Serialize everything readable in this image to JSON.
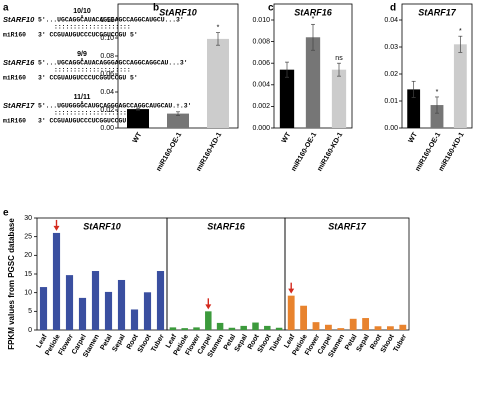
{
  "panel_labels": [
    "a",
    "b",
    "c",
    "d",
    "e"
  ],
  "alignment": [
    {
      "ratio": "10/10",
      "gene": "StARF10",
      "target": "5′...UGCAGGCAUACAGGGAGCCAGGCAUGCU...3′",
      "pairing": "::::::::::::::::::::",
      "mirna": "miR160",
      "mirna_seq": "3′  CCGUAUGUCCCUCGGUCCGU  5′"
    },
    {
      "ratio": "9/9",
      "gene": "StARF16",
      "target": "5′...UGCAGGCAUACAGGGAGCCAGGCAGGCAU...3′",
      "pairing": "::::::::::::::::::::",
      "mirna": "miR160",
      "mirna_seq": "3′  CCGUAUGUCCCUCGGUCCGU  5′"
    },
    {
      "ratio": "11/11",
      "gene": "StARF17",
      "target": "5′...UGUGGGGCAUGCAGGGAGCCAGGCAUGCAU...3′",
      "pairing": "::::::::::::::::::::",
      "mirna": "miR160",
      "mirna_seq": "3′  CCGUAUGUCCCUCGGUCCGU  5′"
    }
  ],
  "chart_data": [
    {
      "type": "bar",
      "title": "StARF10",
      "categories": [
        "WT",
        "miR160-OE-1",
        "miR160-KD-1"
      ],
      "values": [
        0.021,
        0.016,
        0.099
      ],
      "errors": [
        0.001,
        0.002,
        0.007
      ],
      "annotations": [
        null,
        "*",
        "*"
      ],
      "colors": [
        "#000000",
        "#767676",
        "#cccccc"
      ],
      "ylim": [
        0,
        0.12
      ],
      "yticks": [
        {
          "value": 0,
          "label": "0.00"
        },
        {
          "value": 0.02,
          "label": "0.02"
        },
        {
          "value": 0.04,
          "label": "0.04"
        },
        {
          "value": 0.06,
          "label": "0.06"
        },
        {
          "value": 0.08,
          "label": "0.08"
        },
        {
          "value": 0.1,
          "label": "0.10"
        },
        {
          "value": 0.12,
          "label": "0.12"
        }
      ]
    },
    {
      "type": "bar",
      "title": "StARF16",
      "categories": [
        "WT",
        "miR160-OE-1",
        "miR160-KD-1"
      ],
      "values": [
        0.0054,
        0.0084,
        0.0054
      ],
      "errors": [
        0.0007,
        0.0012,
        0.0006
      ],
      "annotations": [
        null,
        "*",
        "ns"
      ],
      "colors": [
        "#000000",
        "#767676",
        "#cccccc"
      ],
      "ylim": [
        0,
        0.01
      ],
      "yticks": [
        {
          "value": 0,
          "label": "0.000"
        },
        {
          "value": 0.002,
          "label": "0.002"
        },
        {
          "value": 0.004,
          "label": "0.004"
        },
        {
          "value": 0.006,
          "label": "0.006"
        },
        {
          "value": 0.008,
          "label": "0.008"
        },
        {
          "value": 0.01,
          "label": "0.010"
        }
      ]
    },
    {
      "type": "bar",
      "title": "StARF17",
      "categories": [
        "WT",
        "miR160-OE-1",
        "miR160-KD-1"
      ],
      "values": [
        0.0143,
        0.0085,
        0.031
      ],
      "errors": [
        0.003,
        0.003,
        0.003
      ],
      "annotations": [
        null,
        "*",
        "*"
      ],
      "colors": [
        "#000000",
        "#767676",
        "#cccccc"
      ],
      "ylim": [
        0,
        0.04
      ],
      "yticks": [
        {
          "value": 0,
          "label": "0.00"
        },
        {
          "value": 0.01,
          "label": "0.01"
        },
        {
          "value": 0.02,
          "label": "0.02"
        },
        {
          "value": 0.03,
          "label": "0.03"
        },
        {
          "value": 0.04,
          "label": "0.04"
        }
      ]
    },
    {
      "type": "bar",
      "y_label": "FPKM values from PGSC database",
      "categories": [
        "Leaf",
        "Petiole",
        "Flower",
        "Carpel",
        "Stamen",
        "Petal",
        "Sepal",
        "Root",
        "Shoot",
        "Tuber"
      ],
      "ylim": [
        0,
        30
      ],
      "yticks": [
        0,
        5,
        10,
        15,
        20,
        25,
        30
      ],
      "highlight_color": "#d42a1e",
      "series": [
        {
          "name": "StARF10",
          "color": "#3a4fa0",
          "highlight": 1,
          "values": [
            11.5,
            26,
            14.7,
            8.6,
            15.8,
            10.2,
            13.4,
            5.5,
            10.1,
            15.8
          ]
        },
        {
          "name": "StARF16",
          "color": "#3c9a3c",
          "highlight": 3,
          "values": [
            0.7,
            0.5,
            0.7,
            5.0,
            1.9,
            0.6,
            1.1,
            2.0,
            1.1,
            0.6
          ]
        },
        {
          "name": "StARF17",
          "color": "#e8832e",
          "highlight": 0,
          "values": [
            9.2,
            6.5,
            2.1,
            1.4,
            0.5,
            3.0,
            3.2,
            1.0,
            1.0,
            1.4
          ]
        }
      ]
    }
  ]
}
